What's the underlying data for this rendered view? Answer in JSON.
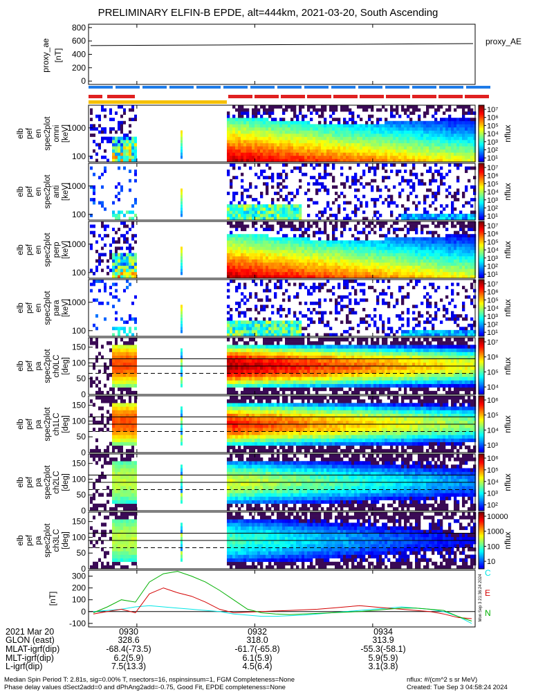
{
  "chart_data": {
    "type": "heatmap",
    "title": "PRELIMINARY ELFIN-B EPDE, alt=444km, 2021-03-20, South Ascending",
    "x_ticks": [
      "0930",
      "0932",
      "0934"
    ],
    "proxy_ae": {
      "ylabel": "proxy_ae",
      "yunit": "[nT]",
      "ticks": [
        "800",
        "600",
        "400",
        "200",
        "0"
      ],
      "legend": "proxy_AE",
      "values": [
        530,
        535,
        540,
        545,
        550,
        555,
        560
      ],
      "ylim": [
        -50,
        850
      ]
    },
    "energy_panels": [
      {
        "name_lines": [
          "elb",
          "pef",
          "en",
          "spec2plot",
          "omni",
          "[keV]"
        ],
        "yticks": [
          "1000",
          "100"
        ],
        "cbar_ticks": [
          "10⁷",
          "10⁶",
          "10⁵",
          "10⁴",
          "10³",
          "10²",
          "10¹"
        ],
        "cbar_label": "nflux"
      },
      {
        "name_lines": [
          "elb",
          "pef",
          "en",
          "spec2plot",
          "anti",
          "[keV]"
        ],
        "yticks": [
          "1000",
          "100"
        ],
        "cbar_ticks": [
          "10⁷",
          "10⁶",
          "10⁵",
          "10⁴",
          "10³",
          "10²",
          "10¹"
        ],
        "cbar_label": "nflux"
      },
      {
        "name_lines": [
          "elb",
          "pef",
          "en",
          "spec2plot",
          "perp",
          "[keV]"
        ],
        "yticks": [
          "1000",
          "100"
        ],
        "cbar_ticks": [
          "10⁷",
          "10⁶",
          "10⁵",
          "10⁴",
          "10³",
          "10²",
          "10¹"
        ],
        "cbar_label": "nflux"
      },
      {
        "name_lines": [
          "elb",
          "pef",
          "en",
          "spec2plot",
          "para",
          "[keV]"
        ],
        "yticks": [
          "1000",
          "100"
        ],
        "cbar_ticks": [
          "10⁷",
          "10⁶",
          "10⁵",
          "10⁴",
          "10³",
          "10²",
          "10¹"
        ],
        "cbar_label": "nflux"
      }
    ],
    "pa_panels": [
      {
        "name_lines": [
          "elb",
          "pef",
          "pa",
          "spec2plot",
          "ch0LC",
          "[deg]"
        ],
        "yticks": [
          "150",
          "100",
          "50",
          "0"
        ],
        "cbar_ticks": [
          "10⁷",
          "10⁶",
          "10⁵",
          "10⁴"
        ],
        "cbar_label": "nflux"
      },
      {
        "name_lines": [
          "elb",
          "pef",
          "pa",
          "spec2plot",
          "ch1LC",
          "[deg]"
        ],
        "yticks": [
          "150",
          "100",
          "50",
          "0"
        ],
        "cbar_ticks": [
          "10⁶",
          "10⁵",
          "10⁴",
          "10³"
        ],
        "cbar_label": "nflux"
      },
      {
        "name_lines": [
          "elb",
          "pef",
          "pa",
          "spec2plot",
          "ch2LC",
          "[deg]"
        ],
        "yticks": [
          "150",
          "100",
          "50",
          "0"
        ],
        "cbar_ticks": [
          "10⁶",
          "10⁵",
          "10⁴",
          "10³",
          "10²"
        ],
        "cbar_label": "nflux"
      },
      {
        "name_lines": [
          "elb",
          "pef",
          "pa",
          "spec2plot",
          "ch3LC",
          "[deg]"
        ],
        "yticks": [
          "150",
          "100",
          "50",
          "0"
        ],
        "cbar_ticks": [
          "10000",
          "1000",
          "100",
          "10"
        ],
        "cbar_label": "nflux"
      }
    ],
    "mag_panel": {
      "yunit": "[nT]",
      "yticks": [
        "300",
        "200",
        "100",
        "0",
        "-100"
      ],
      "ylim": [
        -130,
        350
      ],
      "legend": [
        "C",
        "E",
        "N"
      ],
      "colors": {
        "C": "#00e6e6",
        "E": "#d40000",
        "N": "#00b000"
      },
      "series_C": [
        0,
        10,
        20,
        40,
        50,
        40,
        30,
        20,
        10,
        0,
        -20,
        -30,
        -40,
        -40,
        -35,
        -30,
        -20,
        -10,
        0,
        10,
        20,
        30,
        40,
        30,
        20,
        0,
        -40,
        -100
      ],
      "series_E": [
        -20,
        0,
        20,
        -10,
        150,
        200,
        160,
        130,
        80,
        20,
        -10,
        -5,
        0,
        5,
        10,
        15,
        20,
        30,
        40,
        50,
        40,
        30,
        20,
        10,
        0,
        -20,
        -50,
        -60
      ],
      "series_N": [
        -10,
        40,
        100,
        80,
        250,
        320,
        340,
        300,
        250,
        180,
        100,
        20,
        -10,
        -20,
        -25,
        -20,
        -15,
        -10,
        -5,
        0,
        10,
        20,
        30,
        30,
        20,
        10,
        -40,
        -80
      ],
      "side_label": "Mon Sep  3 21:36:24 2024"
    },
    "footer_rows": [
      {
        "label": "2021 Mar 20",
        "values": [
          "0930",
          "0932",
          "0934"
        ]
      },
      {
        "label": "GLON (east)",
        "values": [
          "328.6",
          "318.0",
          "313.9"
        ]
      },
      {
        "label": "MLAT-igrf(dip)",
        "values": [
          "-68.4(-73.5)",
          "-61.7(-65.8)",
          "-55.3(-58.1)"
        ]
      },
      {
        "label": "MLT-igrf(dip)",
        "values": [
          "6.2(5.9)",
          "6.1(5.9)",
          "5.9(5.9)"
        ]
      },
      {
        "label": "L-igrf(dip)",
        "values": [
          "7.5(13.3)",
          "4.5(6.4)",
          "3.1(3.8)"
        ]
      }
    ],
    "footnotes": [
      "Median Spin Period T: 2.81s, sig=0.00% T, nsectors=16, nspinsinsum=1, FGM Completeness=None",
      "Phase delay values dSect2add=0 and dPhAng2add=-0.75, Good Fit, EPDE completeness=None"
    ],
    "footnotes_right": [
      "nflux: #/(cm^2 s sr MeV)",
      "Created: Tue Sep  3 04:58:24 2024"
    ]
  }
}
